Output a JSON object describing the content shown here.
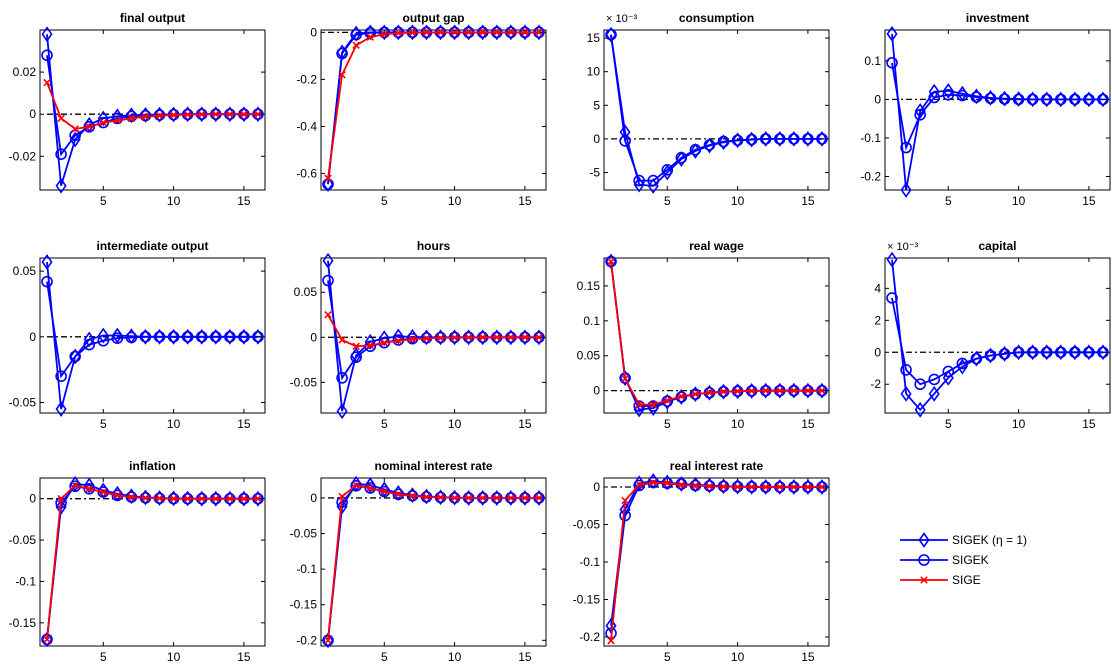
{
  "colors": {
    "sigek_eta": "#0000ff",
    "sigek": "#0000ff",
    "sige": "#ff0000",
    "zero_line": "#000000"
  },
  "legend": {
    "placement": "lower-right",
    "entries": [
      {
        "label": "SIGEK (η = 1)",
        "marker": "diamond",
        "color": "#0000ff"
      },
      {
        "label": "SIGEK",
        "marker": "circle",
        "color": "#0000ff"
      },
      {
        "label": "SIGE",
        "marker": "x",
        "color": "#ff0000"
      }
    ]
  },
  "chart_data": [
    {
      "type": "line",
      "title": "final output",
      "x": [
        1,
        2,
        3,
        4,
        5,
        6,
        7,
        8,
        9,
        10,
        11,
        12,
        13,
        14,
        15,
        16
      ],
      "xlim": [
        0.5,
        16.5
      ],
      "xticks": [
        5,
        10,
        15
      ],
      "ylim": [
        -0.036,
        0.04
      ],
      "yticks": [
        -0.02,
        0,
        0.02
      ],
      "yticklabels": [
        "-0.02",
        "0",
        "0.02"
      ],
      "multiplier": "",
      "series": [
        {
          "key": "sigek_eta",
          "values": [
            0.038,
            -0.034,
            -0.012,
            -0.005,
            -0.002,
            -0.001,
            -0.0005,
            -0.0003,
            -0.0002,
            -0.0001,
            0,
            0,
            0,
            0,
            0,
            0
          ]
        },
        {
          "key": "sigek",
          "values": [
            0.028,
            -0.019,
            -0.01,
            -0.006,
            -0.004,
            -0.002,
            -0.001,
            -0.0007,
            -0.0004,
            -0.0002,
            -0.0001,
            0,
            0,
            0,
            0,
            0
          ]
        },
        {
          "key": "sige",
          "values": [
            0.015,
            -0.002,
            -0.007,
            -0.006,
            -0.004,
            -0.003,
            -0.002,
            -0.0012,
            -0.0007,
            -0.0004,
            -0.0002,
            -0.0001,
            0,
            0,
            0,
            0
          ]
        }
      ]
    },
    {
      "type": "line",
      "title": "output gap",
      "x": [
        1,
        2,
        3,
        4,
        5,
        6,
        7,
        8,
        9,
        10,
        11,
        12,
        13,
        14,
        15,
        16
      ],
      "xlim": [
        0.5,
        16.5
      ],
      "xticks": [
        5,
        10,
        15
      ],
      "ylim": [
        -0.67,
        0.01
      ],
      "yticks": [
        -0.6,
        -0.4,
        -0.2,
        0
      ],
      "yticklabels": [
        "-0.6",
        "-0.4",
        "-0.2",
        "0"
      ],
      "multiplier": "",
      "series": [
        {
          "key": "sigek_eta",
          "values": [
            -0.645,
            -0.085,
            -0.005,
            0,
            0,
            0,
            0,
            0,
            0,
            0,
            0,
            0,
            0,
            0,
            0,
            0
          ]
        },
        {
          "key": "sigek",
          "values": [
            -0.645,
            -0.09,
            -0.01,
            -0.002,
            0,
            0,
            0,
            0,
            0,
            0,
            0,
            0,
            0,
            0,
            0,
            0
          ]
        },
        {
          "key": "sige",
          "values": [
            -0.62,
            -0.18,
            -0.055,
            -0.02,
            -0.008,
            -0.003,
            -0.001,
            0,
            0,
            0,
            0,
            0,
            0,
            0,
            0,
            0
          ]
        }
      ]
    },
    {
      "type": "line",
      "title": "consumption",
      "x": [
        1,
        2,
        3,
        4,
        5,
        6,
        7,
        8,
        9,
        10,
        11,
        12,
        13,
        14,
        15,
        16
      ],
      "xlim": [
        0.5,
        16.5
      ],
      "xticks": [
        5,
        10,
        15
      ],
      "ylim": [
        -7.6,
        16.2
      ],
      "yticks": [
        -5,
        0,
        5,
        10,
        15
      ],
      "yticklabels": [
        "-5",
        "0",
        "5",
        "10",
        "15"
      ],
      "multiplier": "× 10⁻³",
      "series": [
        {
          "key": "sigek_eta",
          "values": [
            15.5,
            1.0,
            -6.8,
            -7.0,
            -5.0,
            -3.0,
            -1.8,
            -1.0,
            -0.5,
            -0.2,
            -0.1,
            0,
            0,
            0,
            0,
            0
          ]
        },
        {
          "key": "sigek",
          "values": [
            15.5,
            -0.3,
            -6.2,
            -6.2,
            -4.6,
            -2.8,
            -1.6,
            -0.9,
            -0.4,
            -0.2,
            -0.1,
            0,
            0,
            0,
            0,
            0
          ]
        }
      ]
    },
    {
      "type": "line",
      "title": "investment",
      "x": [
        1,
        2,
        3,
        4,
        5,
        6,
        7,
        8,
        9,
        10,
        11,
        12,
        13,
        14,
        15,
        16
      ],
      "xlim": [
        0.5,
        16.5
      ],
      "xticks": [
        5,
        10,
        15
      ],
      "ylim": [
        -0.235,
        0.18
      ],
      "yticks": [
        -0.2,
        -0.1,
        0,
        0.1
      ],
      "yticklabels": [
        "-0.2",
        "-0.1",
        "0",
        "0.1"
      ],
      "multiplier": "",
      "series": [
        {
          "key": "sigek_eta",
          "values": [
            0.17,
            -0.235,
            -0.03,
            0.02,
            0.022,
            0.015,
            0.008,
            0.004,
            0.002,
            0.001,
            0,
            0,
            0,
            0,
            0,
            0
          ]
        },
        {
          "key": "sigek",
          "values": [
            0.095,
            -0.125,
            -0.04,
            0.005,
            0.012,
            0.01,
            0.006,
            0.003,
            0.001,
            0,
            0,
            0,
            0,
            0,
            0,
            0
          ]
        }
      ]
    },
    {
      "type": "line",
      "title": "intermediate output",
      "x": [
        1,
        2,
        3,
        4,
        5,
        6,
        7,
        8,
        9,
        10,
        11,
        12,
        13,
        14,
        15,
        16
      ],
      "xlim": [
        0.5,
        16.5
      ],
      "xticks": [
        5,
        10,
        15
      ],
      "ylim": [
        -0.058,
        0.06
      ],
      "yticks": [
        -0.05,
        0,
        0.05
      ],
      "yticklabels": [
        "-0.05",
        "0",
        "0.05"
      ],
      "multiplier": "",
      "series": [
        {
          "key": "sigek_eta",
          "values": [
            0.057,
            -0.055,
            -0.015,
            -0.002,
            0.001,
            0.001,
            0.0005,
            0,
            0,
            0,
            0,
            0,
            0,
            0,
            0,
            0
          ]
        },
        {
          "key": "sigek",
          "values": [
            0.042,
            -0.03,
            -0.015,
            -0.006,
            -0.003,
            -0.001,
            -0.0005,
            0,
            0,
            0,
            0,
            0,
            0,
            0,
            0,
            0
          ]
        }
      ]
    },
    {
      "type": "line",
      "title": "hours",
      "x": [
        1,
        2,
        3,
        4,
        5,
        6,
        7,
        8,
        9,
        10,
        11,
        12,
        13,
        14,
        15,
        16
      ],
      "xlim": [
        0.5,
        16.5
      ],
      "xticks": [
        5,
        10,
        15
      ],
      "ylim": [
        -0.084,
        0.088
      ],
      "yticks": [
        -0.05,
        0,
        0.05
      ],
      "yticklabels": [
        "-0.05",
        "0",
        "0.05"
      ],
      "multiplier": "",
      "series": [
        {
          "key": "sigek_eta",
          "values": [
            0.085,
            -0.082,
            -0.02,
            -0.005,
            -0.001,
            0.001,
            0.0005,
            0,
            0,
            0,
            0,
            0,
            0,
            0,
            0,
            0
          ]
        },
        {
          "key": "sigek",
          "values": [
            0.063,
            -0.045,
            -0.022,
            -0.01,
            -0.006,
            -0.003,
            -0.0015,
            -0.0007,
            -0.0003,
            0,
            0,
            0,
            0,
            0,
            0,
            0
          ]
        },
        {
          "key": "sige",
          "values": [
            0.025,
            -0.003,
            -0.01,
            -0.009,
            -0.006,
            -0.004,
            -0.002,
            -0.0012,
            -0.0007,
            -0.0004,
            -0.0002,
            0,
            0,
            0,
            0,
            0
          ]
        }
      ]
    },
    {
      "type": "line",
      "title": "real wage",
      "x": [
        1,
        2,
        3,
        4,
        5,
        6,
        7,
        8,
        9,
        10,
        11,
        12,
        13,
        14,
        15,
        16
      ],
      "xlim": [
        0.5,
        16.5
      ],
      "xticks": [
        5,
        10,
        15
      ],
      "ylim": [
        -0.032,
        0.19
      ],
      "yticks": [
        0,
        0.05,
        0.1,
        0.15
      ],
      "yticklabels": [
        "0",
        "0.05",
        "0.1",
        "0.15"
      ],
      "multiplier": "",
      "series": [
        {
          "key": "sigek_eta",
          "values": [
            0.185,
            0.018,
            -0.027,
            -0.025,
            -0.016,
            -0.009,
            -0.005,
            -0.003,
            -0.0015,
            -0.0008,
            -0.0004,
            0,
            0,
            0,
            0,
            0
          ]
        },
        {
          "key": "sigek",
          "values": [
            0.185,
            0.018,
            -0.022,
            -0.022,
            -0.015,
            -0.009,
            -0.005,
            -0.003,
            -0.0015,
            -0.0008,
            -0.0004,
            0,
            0,
            0,
            0,
            0
          ]
        },
        {
          "key": "sige",
          "values": [
            0.185,
            0.017,
            -0.02,
            -0.02,
            -0.014,
            -0.008,
            -0.005,
            -0.003,
            -0.0015,
            -0.0008,
            -0.0004,
            0,
            0,
            0,
            0,
            0
          ]
        }
      ]
    },
    {
      "type": "line",
      "title": "capital",
      "x": [
        1,
        2,
        3,
        4,
        5,
        6,
        7,
        8,
        9,
        10,
        11,
        12,
        13,
        14,
        15,
        16
      ],
      "xlim": [
        0.5,
        16.5
      ],
      "xticks": [
        5,
        10,
        15
      ],
      "ylim": [
        -3.8,
        5.9
      ],
      "yticks": [
        -2,
        0,
        2,
        4
      ],
      "yticklabels": [
        "-2",
        "0",
        "2",
        "4"
      ],
      "multiplier": "× 10⁻³",
      "series": [
        {
          "key": "sigek_eta",
          "values": [
            5.8,
            -2.6,
            -3.6,
            -2.6,
            -1.6,
            -0.9,
            -0.4,
            -0.2,
            -0.1,
            0,
            0,
            0,
            0,
            0,
            0,
            0
          ]
        },
        {
          "key": "sigek",
          "values": [
            3.4,
            -1.1,
            -2.0,
            -1.7,
            -1.2,
            -0.7,
            -0.4,
            -0.2,
            -0.1,
            0,
            0,
            0,
            0,
            0,
            0,
            0
          ]
        }
      ]
    },
    {
      "type": "line",
      "title": "inflation",
      "x": [
        1,
        2,
        3,
        4,
        5,
        6,
        7,
        8,
        9,
        10,
        11,
        12,
        13,
        14,
        15,
        16
      ],
      "xlim": [
        0.5,
        16.5
      ],
      "xticks": [
        5,
        10,
        15
      ],
      "ylim": [
        -0.178,
        0.025
      ],
      "yticks": [
        -0.15,
        -0.1,
        -0.05,
        0
      ],
      "yticklabels": [
        "-0.15",
        "-0.1",
        "-0.05",
        "0"
      ],
      "multiplier": "",
      "series": [
        {
          "key": "sigek_eta",
          "values": [
            -0.17,
            -0.01,
            0.018,
            0.016,
            0.01,
            0.006,
            0.003,
            0.0015,
            0.0008,
            0.0004,
            0.0002,
            0,
            0,
            0,
            0,
            0
          ]
        },
        {
          "key": "sigek",
          "values": [
            -0.17,
            -0.005,
            0.015,
            0.012,
            0.008,
            0.004,
            0.002,
            0.001,
            0.0005,
            0,
            0,
            0,
            0,
            0,
            0,
            0
          ]
        },
        {
          "key": "sige",
          "values": [
            -0.17,
            0,
            0.016,
            0.012,
            0.008,
            0.004,
            0.002,
            0.001,
            0.0005,
            0,
            0,
            0,
            0,
            0,
            0,
            0
          ]
        }
      ]
    },
    {
      "type": "line",
      "title": "nominal interest rate",
      "x": [
        1,
        2,
        3,
        4,
        5,
        6,
        7,
        8,
        9,
        10,
        11,
        12,
        13,
        14,
        15,
        16
      ],
      "xlim": [
        0.5,
        16.5
      ],
      "xticks": [
        5,
        10,
        15
      ],
      "ylim": [
        -0.208,
        0.028
      ],
      "yticks": [
        -0.2,
        -0.15,
        -0.1,
        -0.05,
        0
      ],
      "yticklabels": [
        "-0.2",
        "-0.15",
        "-0.1",
        "-0.05",
        "0"
      ],
      "multiplier": "",
      "series": [
        {
          "key": "sigek_eta",
          "values": [
            -0.2,
            -0.012,
            0.02,
            0.018,
            0.012,
            0.007,
            0.004,
            0.002,
            0.001,
            0.0005,
            0,
            0,
            0,
            0,
            0,
            0
          ]
        },
        {
          "key": "sigek",
          "values": [
            -0.2,
            -0.006,
            0.017,
            0.014,
            0.009,
            0.005,
            0.003,
            0.0015,
            0.0008,
            0,
            0,
            0,
            0,
            0,
            0,
            0
          ]
        },
        {
          "key": "sige",
          "values": [
            -0.2,
            0.002,
            0.018,
            0.014,
            0.009,
            0.005,
            0.003,
            0.0015,
            0.0008,
            0,
            0,
            0,
            0,
            0,
            0,
            0
          ]
        }
      ]
    },
    {
      "type": "line",
      "title": "real interest rate",
      "x": [
        1,
        2,
        3,
        4,
        5,
        6,
        7,
        8,
        9,
        10,
        11,
        12,
        13,
        14,
        15,
        16
      ],
      "xlim": [
        0.5,
        16.5
      ],
      "xticks": [
        5,
        10,
        15
      ],
      "ylim": [
        -0.212,
        0.012
      ],
      "yticks": [
        -0.2,
        -0.15,
        -0.1,
        -0.05,
        0
      ],
      "yticklabels": [
        "-0.2",
        "-0.15",
        "-0.1",
        "-0.05",
        "0"
      ],
      "multiplier": "",
      "series": [
        {
          "key": "sigek_eta",
          "values": [
            -0.185,
            -0.03,
            0.005,
            0.008,
            0.006,
            0.004,
            0.003,
            0.002,
            0.001,
            0.0005,
            0.0002,
            0,
            0,
            0,
            0,
            0
          ]
        },
        {
          "key": "sigek",
          "values": [
            -0.195,
            -0.038,
            0.002,
            0.006,
            0.005,
            0.004,
            0.002,
            0.0015,
            0.001,
            0.0005,
            0.0002,
            0,
            0,
            0,
            0,
            0
          ]
        },
        {
          "key": "sige",
          "values": [
            -0.205,
            -0.018,
            0.003,
            0.006,
            0.005,
            0.003,
            0.002,
            0.001,
            0.0005,
            0.0002,
            0,
            0,
            0,
            0,
            0,
            0
          ]
        }
      ]
    }
  ]
}
